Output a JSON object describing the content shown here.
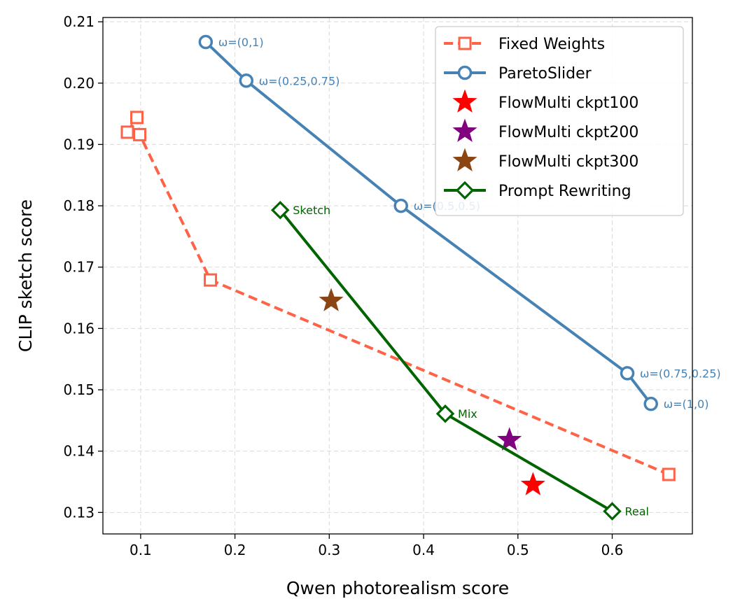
{
  "chart_data": {
    "type": "scatter",
    "xlabel": "Qwen photorealism score",
    "ylabel": "CLIP sketch score",
    "xlim": [
      0.06,
      0.685
    ],
    "ylim": [
      0.1265,
      0.2107
    ],
    "xticks": [
      0.1,
      0.2,
      0.3,
      0.4,
      0.5,
      0.6
    ],
    "xtick_labels": [
      "0.1",
      "0.2",
      "0.3",
      "0.4",
      "0.5",
      "0.6"
    ],
    "yticks": [
      0.13,
      0.14,
      0.15,
      0.16,
      0.17,
      0.18,
      0.19,
      0.2,
      0.21
    ],
    "ytick_labels": [
      "0.13",
      "0.14",
      "0.15",
      "0.16",
      "0.17",
      "0.18",
      "0.19",
      "0.20",
      "0.21"
    ],
    "grid": true,
    "legend_position": "top-right",
    "series": [
      {
        "name": "Fixed Weights",
        "color": "#FF6347",
        "marker": "square",
        "line": "dashed",
        "points": [
          {
            "x": 0.086,
            "y": 0.192
          },
          {
            "x": 0.096,
            "y": 0.1944
          },
          {
            "x": 0.099,
            "y": 0.1916
          },
          {
            "x": 0.174,
            "y": 0.1679
          },
          {
            "x": 0.66,
            "y": 0.1362
          }
        ]
      },
      {
        "name": "ParetoSlider",
        "color": "#4682B4",
        "marker": "circle",
        "line": "solid",
        "points": [
          {
            "x": 0.169,
            "y": 0.2067,
            "label": "ω=(0,1)"
          },
          {
            "x": 0.212,
            "y": 0.2004,
            "label": "ω=(0.25,0.75)"
          },
          {
            "x": 0.376,
            "y": 0.18,
            "label": "ω=(0.5,0.5)"
          },
          {
            "x": 0.616,
            "y": 0.1527,
            "label": "ω=(0.75,0.25)"
          },
          {
            "x": 0.641,
            "y": 0.1477,
            "label": "ω=(1,0)"
          }
        ]
      },
      {
        "name": "FlowMulti ckpt100",
        "color": "#FF0000",
        "marker": "star",
        "line": "none",
        "points": [
          {
            "x": 0.516,
            "y": 0.1345
          }
        ]
      },
      {
        "name": "FlowMulti ckpt200",
        "color": "#800080",
        "marker": "star",
        "line": "none",
        "points": [
          {
            "x": 0.491,
            "y": 0.1418
          }
        ]
      },
      {
        "name": "FlowMulti ckpt300",
        "color": "#8B4513",
        "marker": "star",
        "line": "none",
        "points": [
          {
            "x": 0.302,
            "y": 0.1645
          }
        ]
      },
      {
        "name": "Prompt Rewriting",
        "color": "#006400",
        "marker": "diamond",
        "line": "solid",
        "points": [
          {
            "x": 0.248,
            "y": 0.1793,
            "label": "Sketch"
          },
          {
            "x": 0.423,
            "y": 0.1461,
            "label": "Mix"
          },
          {
            "x": 0.6,
            "y": 0.1302,
            "label": "Real"
          }
        ]
      }
    ]
  }
}
